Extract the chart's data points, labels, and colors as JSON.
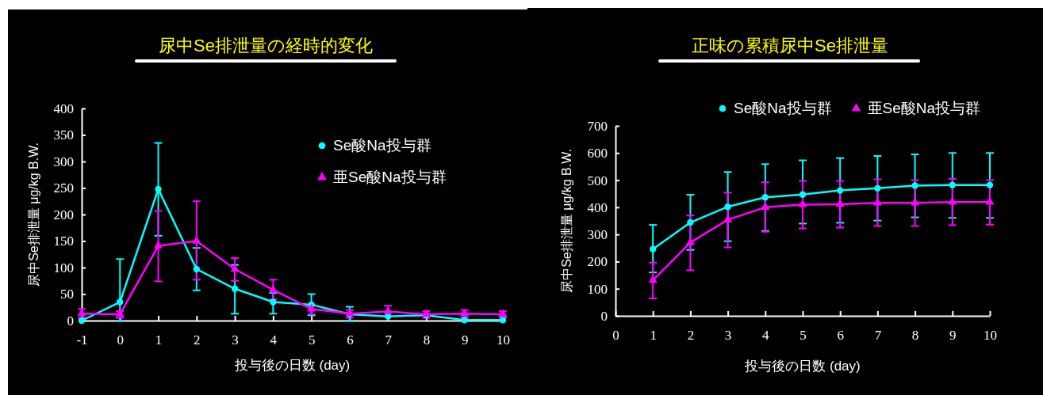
{
  "chart_data": [
    {
      "type": "line",
      "title": "尿中Se排泄量の経時的変化",
      "xlabel": "投与後の日数 (day)",
      "ylabel": "尿中Se排泄量 μg/kg B.W.",
      "xlim": [
        -1,
        10
      ],
      "xticks": [
        -1,
        0,
        1,
        2,
        3,
        4,
        5,
        6,
        7,
        8,
        9,
        10
      ],
      "ylim": [
        0,
        400
      ],
      "yticks": [
        0,
        50,
        100,
        150,
        200,
        250,
        300,
        350,
        400
      ],
      "legend": "top right",
      "x": [
        -1,
        0,
        1,
        2,
        3,
        4,
        5,
        6,
        7,
        8,
        9,
        10
      ],
      "series": [
        {
          "name": "Se酸Na投与群",
          "color": "#00ffff",
          "marker": "circle",
          "values": [
            0,
            35,
            248,
            97,
            60,
            35,
            30,
            12,
            8,
            10,
            1,
            1
          ],
          "errors": [
            null,
            [
              0,
              116
            ],
            [
              160,
              335
            ],
            [
              57,
              137
            ],
            [
              13,
              105
            ],
            [
              13,
              52
            ],
            [
              10,
              50
            ],
            [
              0,
              26
            ],
            null,
            null,
            null,
            null
          ]
        },
        {
          "name": "亜Se酸Na投与群",
          "color": "#ff00ff",
          "marker": "triangle",
          "values": [
            13,
            12,
            141,
            150,
            97,
            58,
            22,
            13,
            17,
            12,
            13,
            12
          ],
          "errors": [
            [
              5,
              22
            ],
            [
              5,
              18
            ],
            [
              74,
              207
            ],
            [
              77,
              225
            ],
            [
              75,
              118
            ],
            [
              40,
              77
            ],
            [
              12,
              30
            ],
            [
              5,
              20
            ],
            [
              8,
              28
            ],
            [
              5,
              18
            ],
            [
              6,
              20
            ],
            [
              6,
              18
            ]
          ]
        }
      ]
    },
    {
      "type": "line",
      "title": "正味の累積尿中Se排泄量",
      "xlabel": "投与後の日数 (day)",
      "ylabel": "尿中Se排泄量 μg/kg B.W.",
      "xlim": [
        0,
        10
      ],
      "xticks": [
        0,
        1,
        2,
        3,
        4,
        5,
        6,
        7,
        8,
        9,
        10
      ],
      "ylim": [
        0,
        700
      ],
      "yticks": [
        0,
        100,
        200,
        300,
        400,
        500,
        600,
        700
      ],
      "legend": "top",
      "x": [
        1,
        2,
        3,
        4,
        5,
        6,
        7,
        8,
        9,
        10
      ],
      "series": [
        {
          "name": "Se酸Na投与群",
          "color": "#00ffff",
          "marker": "circle",
          "values": [
            246,
            344,
            402,
            437,
            447,
            462,
            470,
            480,
            482,
            482
          ],
          "errors": [
            [
              160,
              335
            ],
            [
              243,
              446
            ],
            [
              275,
              530
            ],
            [
              313,
              559
            ],
            [
              340,
              573
            ],
            [
              343,
              581
            ],
            [
              351,
              589
            ],
            [
              363,
              595
            ],
            [
              361,
              600
            ],
            [
              361,
              600
            ]
          ]
        },
        {
          "name": "亜Se酸Na投与群",
          "color": "#ff00ff",
          "marker": "triangle",
          "values": [
            131,
            270,
            354,
            400,
            410,
            411,
            416,
            416,
            419,
            419
          ],
          "errors": [
            [
              64,
              196
            ],
            [
              168,
              370
            ],
            [
              252,
              454
            ],
            [
              310,
              492
            ],
            [
              322,
              497
            ],
            [
              325,
              497
            ],
            [
              331,
              503
            ],
            [
              331,
              500
            ],
            [
              334,
              505
            ],
            [
              336,
              500
            ]
          ]
        }
      ]
    }
  ]
}
